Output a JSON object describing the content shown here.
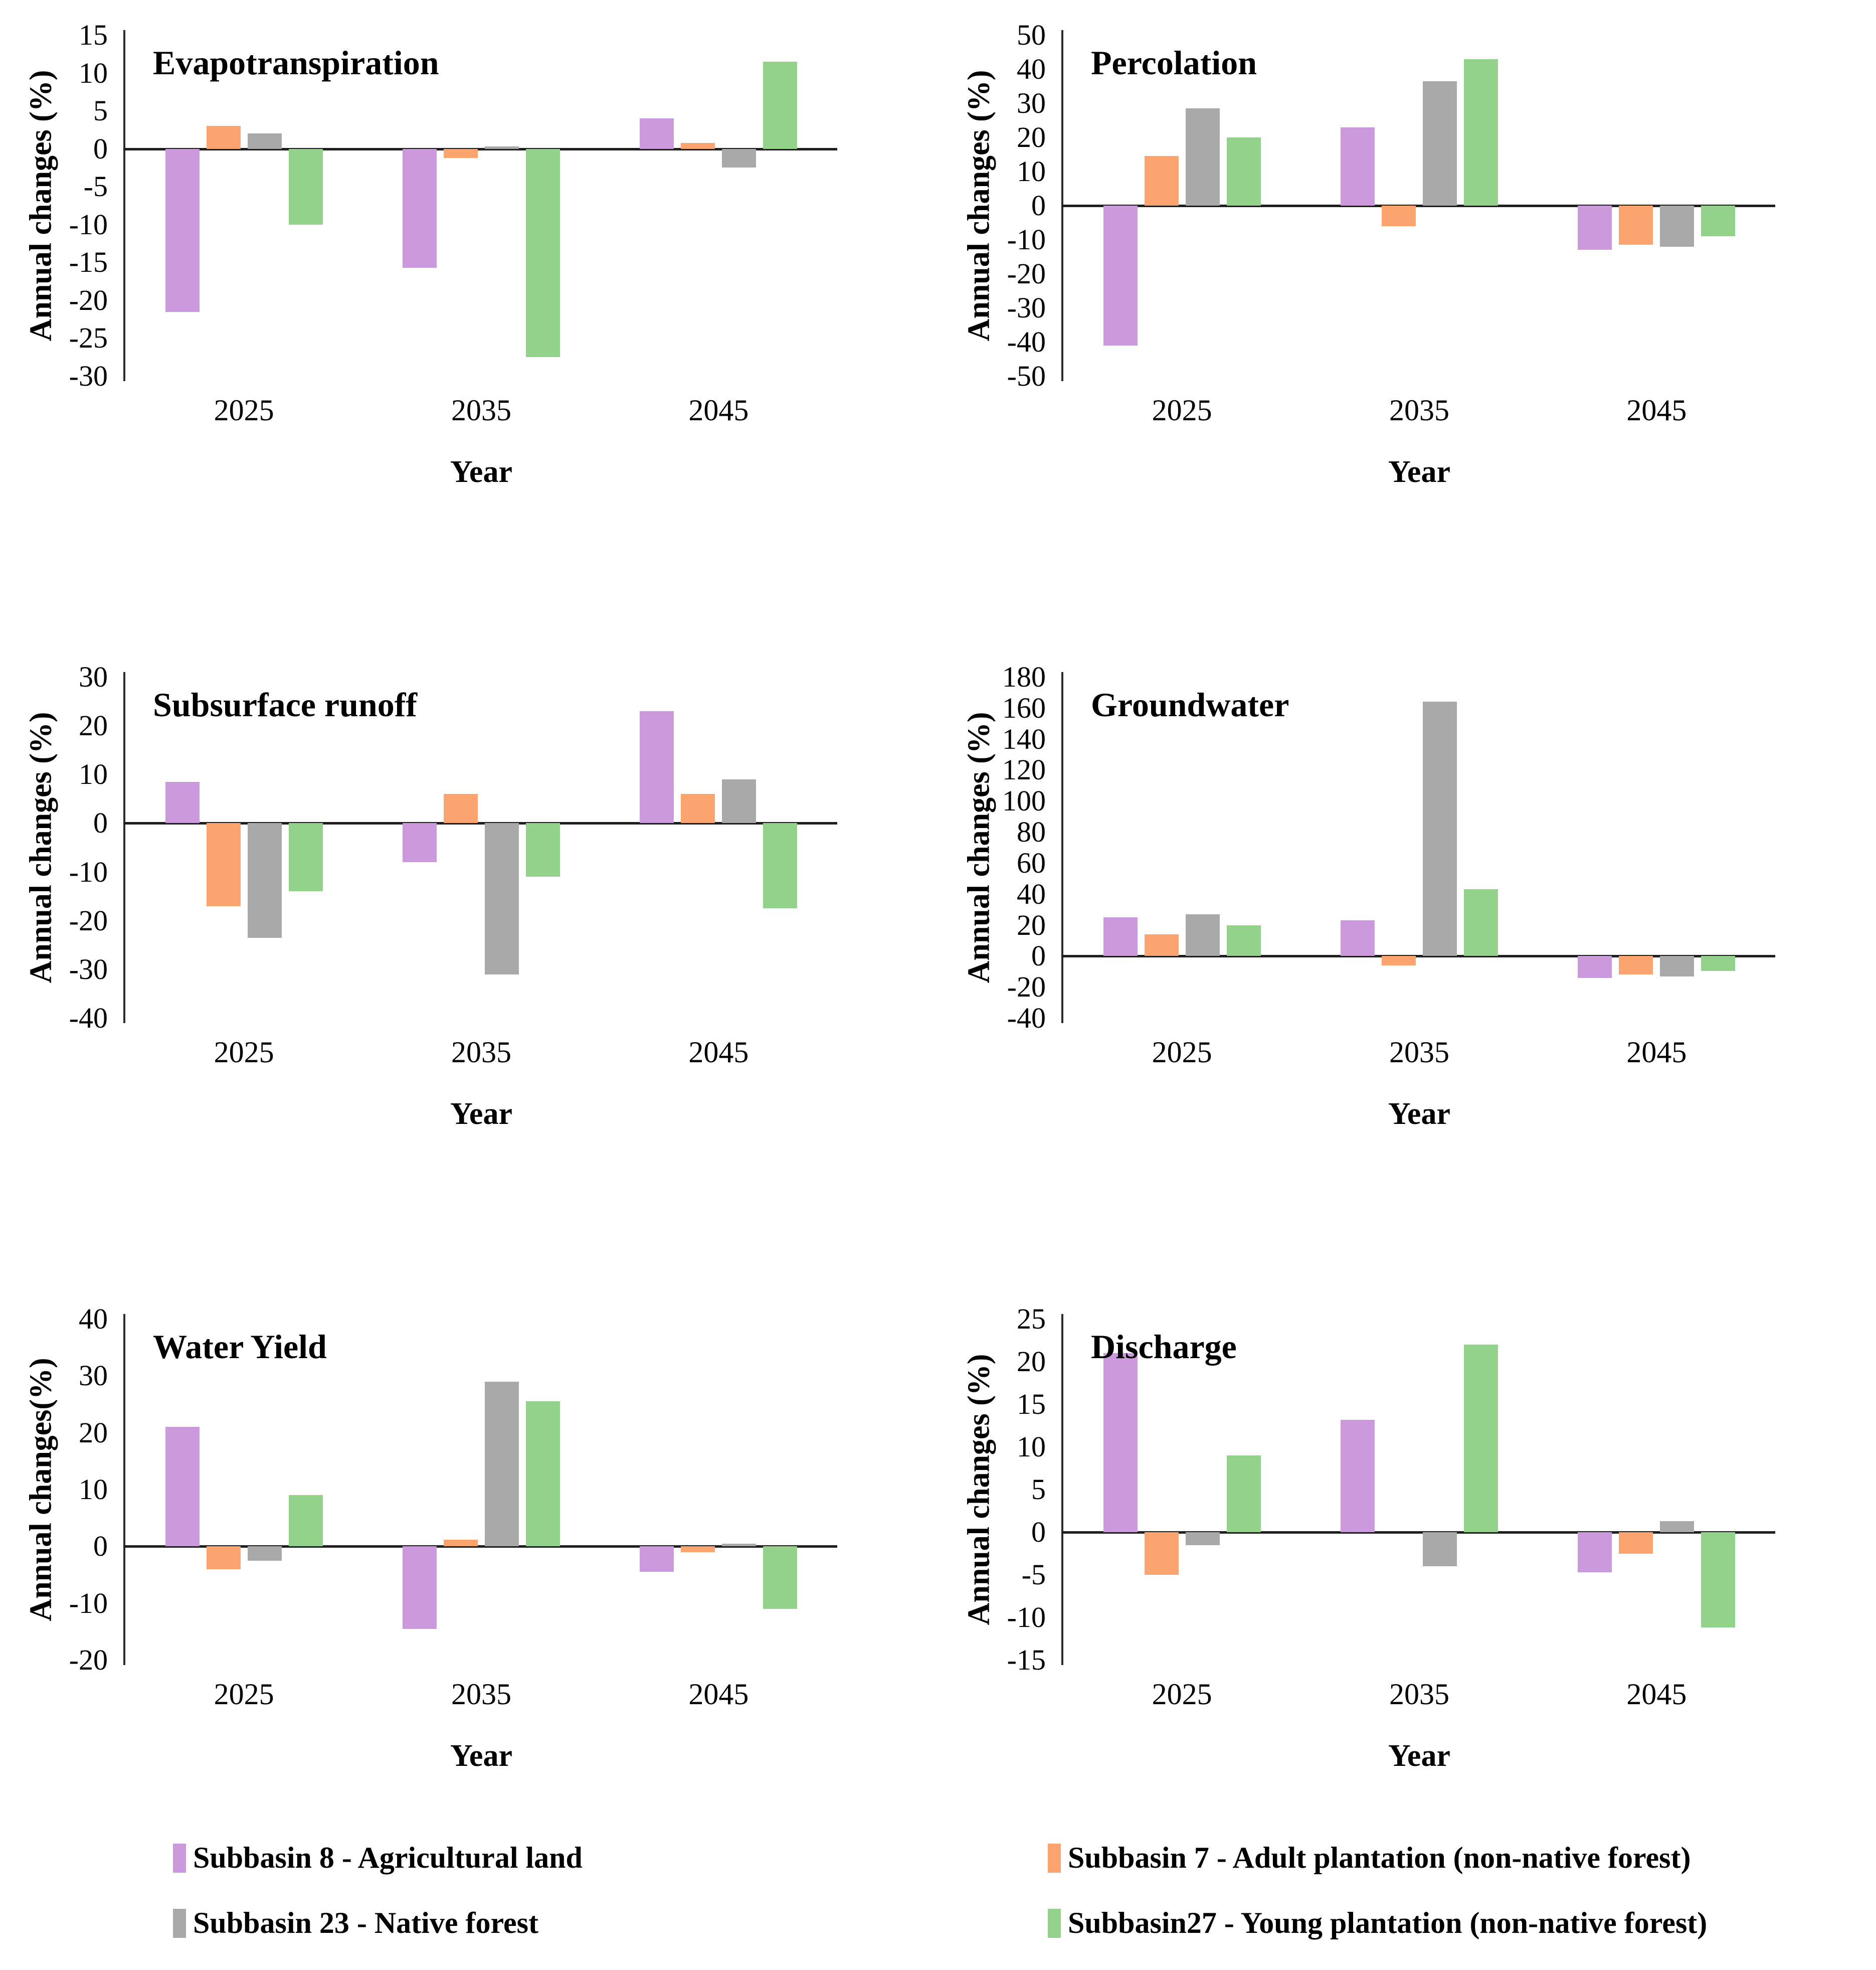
{
  "figure": {
    "background": "#ffffff",
    "axis_color": "#1f1f1f",
    "years_shown": [
      "2025",
      "2035",
      "2045"
    ]
  },
  "series_colors": {
    "subbasin8": "#CC99DD",
    "subbasin7": "#FCA470",
    "subbasin23": "#A9A9A9",
    "subbasin27": "#93D28B"
  },
  "chart_data": [
    {
      "type": "bar",
      "title": "Evapotranspiration",
      "ylabel": "Annual changes (%)",
      "xlabel": "Year",
      "categories": [
        "2025",
        "2035",
        "2045"
      ],
      "ylim": [
        -30,
        15
      ],
      "ytick_step": 5,
      "grid": false,
      "series": [
        {
          "name": "Subbasin 8 - Agricultural land",
          "color": "#CC99DD",
          "values": [
            -21.5,
            -15.7,
            4.0
          ]
        },
        {
          "name": "Subbasin 7 - Adult plantation (non-native forest)",
          "color": "#FCA470",
          "values": [
            3.0,
            -1.2,
            0.8
          ]
        },
        {
          "name": "Subbasin 23 - Native forest",
          "color": "#A9A9A9",
          "values": [
            2.0,
            0.3,
            -2.5
          ]
        },
        {
          "name": "Subbasin27 - Young plantation (non-native forest)",
          "color": "#93D28B",
          "values": [
            -10.0,
            -27.5,
            11.5
          ]
        }
      ]
    },
    {
      "type": "bar",
      "title": "Percolation",
      "ylabel": "Annual changes (%)",
      "xlabel": "Year",
      "categories": [
        "2025",
        "2035",
        "2045"
      ],
      "ylim": [
        -50,
        50
      ],
      "ytick_step": 10,
      "grid": false,
      "series": [
        {
          "name": "Subbasin 8 - Agricultural land",
          "color": "#CC99DD",
          "values": [
            -41.0,
            23.0,
            -13.0
          ]
        },
        {
          "name": "Subbasin 7 - Adult plantation (non-native forest)",
          "color": "#FCA470",
          "values": [
            14.5,
            -6.0,
            -11.5
          ]
        },
        {
          "name": "Subbasin 23 - Native forest",
          "color": "#A9A9A9",
          "values": [
            28.5,
            36.5,
            -12.0
          ]
        },
        {
          "name": "Subbasin27 - Young plantation (non-native forest)",
          "color": "#93D28B",
          "values": [
            20.0,
            43.0,
            -9.0
          ]
        }
      ]
    },
    {
      "type": "bar",
      "title": "Subsurface runoff",
      "ylabel": "Annual changes (%)",
      "xlabel": "Year",
      "categories": [
        "2025",
        "2035",
        "2045"
      ],
      "ylim": [
        -40,
        30
      ],
      "ytick_step": 10,
      "grid": false,
      "series": [
        {
          "name": "Subbasin 8 - Agricultural land",
          "color": "#CC99DD",
          "values": [
            8.5,
            -8.0,
            23.0
          ]
        },
        {
          "name": "Subbasin 7 - Adult plantation (non-native forest)",
          "color": "#FCA470",
          "values": [
            -17.0,
            6.0,
            6.0
          ]
        },
        {
          "name": "Subbasin 23 - Native forest",
          "color": "#A9A9A9",
          "values": [
            -23.5,
            -31.0,
            9.0
          ]
        },
        {
          "name": "Subbasin27 - Young plantation (non-native forest)",
          "color": "#93D28B",
          "values": [
            -14.0,
            -11.0,
            -17.5
          ]
        }
      ]
    },
    {
      "type": "bar",
      "title": "Groundwater",
      "ylabel": "Annual changes (%)",
      "xlabel": "Year",
      "categories": [
        "2025",
        "2035",
        "2045"
      ],
      "ylim": [
        -40,
        180
      ],
      "ytick_step": 20,
      "grid": false,
      "series": [
        {
          "name": "Subbasin 8 - Agricultural land",
          "color": "#CC99DD",
          "values": [
            25.0,
            23.0,
            -14.0
          ]
        },
        {
          "name": "Subbasin 7 - Adult plantation (non-native forest)",
          "color": "#FCA470",
          "values": [
            14.0,
            -6.0,
            -12.0
          ]
        },
        {
          "name": "Subbasin 23 - Native forest",
          "color": "#A9A9A9",
          "values": [
            27.0,
            164.0,
            -13.0
          ]
        },
        {
          "name": "Subbasin27 - Young plantation (non-native forest)",
          "color": "#93D28B",
          "values": [
            20.0,
            43.0,
            -9.5
          ]
        }
      ]
    },
    {
      "type": "bar",
      "title": "Water Yield",
      "ylabel": "Annual changes(%)",
      "xlabel": "Year",
      "categories": [
        "2025",
        "2035",
        "2045"
      ],
      "ylim": [
        -20,
        40
      ],
      "ytick_step": 10,
      "grid": false,
      "series": [
        {
          "name": "Subbasin 8 - Agricultural land",
          "color": "#CC99DD",
          "values": [
            21.0,
            -14.5,
            -4.5
          ]
        },
        {
          "name": "Subbasin 7 - Adult plantation (non-native forest)",
          "color": "#FCA470",
          "values": [
            -4.0,
            1.2,
            -1.0
          ]
        },
        {
          "name": "Subbasin 23 - Native forest",
          "color": "#A9A9A9",
          "values": [
            -2.5,
            29.0,
            0.5
          ]
        },
        {
          "name": "Subbasin27 - Young plantation (non-native forest)",
          "color": "#93D28B",
          "values": [
            9.0,
            25.5,
            -11.0
          ]
        }
      ]
    },
    {
      "type": "bar",
      "title": "Discharge",
      "ylabel": "Annual changes (%)",
      "xlabel": "Year",
      "categories": [
        "2025",
        "2035",
        "2045"
      ],
      "ylim": [
        -15,
        25
      ],
      "ytick_step": 5,
      "grid": false,
      "series": [
        {
          "name": "Subbasin 8 - Agricultural land",
          "color": "#CC99DD",
          "values": [
            21.0,
            13.2,
            -4.7
          ]
        },
        {
          "name": "Subbasin 7 - Adult plantation (non-native forest)",
          "color": "#FCA470",
          "values": [
            -5.0,
            0.0,
            -2.5
          ]
        },
        {
          "name": "Subbasin 23 - Native forest",
          "color": "#A9A9A9",
          "values": [
            -1.5,
            -4.0,
            1.3
          ]
        },
        {
          "name": "Subbasin27 - Young plantation (non-native forest)",
          "color": "#93D28B",
          "values": [
            9.0,
            22.0,
            -11.2
          ]
        }
      ]
    }
  ],
  "legend": {
    "items": [
      {
        "label": "Subbasin 8 - Agricultural land",
        "color": "#CC99DD"
      },
      {
        "label": "Subbasin 7 - Adult plantation (non-native forest)",
        "color": "#FCA470"
      },
      {
        "label": "Subbasin 23 - Native forest",
        "color": "#A9A9A9"
      },
      {
        "label": "Subbasin27 - Young plantation (non-native forest)",
        "color": "#93D28B"
      }
    ]
  }
}
